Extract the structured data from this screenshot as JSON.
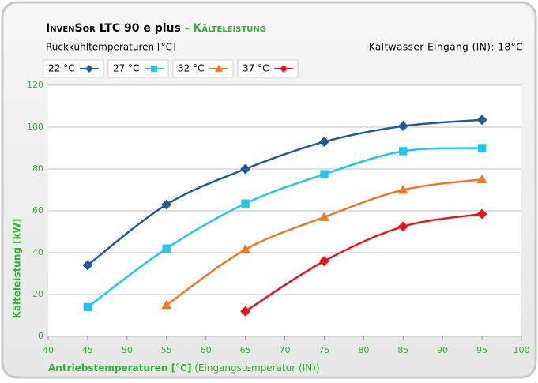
{
  "chart_data": {
    "type": "line",
    "title": [
      "InvenSor",
      " LTC 90 e plus",
      " - Kälteleistung"
    ],
    "subtitle": "Rückkühltemperaturen [°C]",
    "annotation": "Kaltwasser Eingang (IN): 18°C",
    "x_label": [
      "Antriebstemperaturen [°C]",
      " (Eingangstemperatur (IN))"
    ],
    "y_label": "Kälteleistung [kW]",
    "x": [
      45,
      55,
      65,
      75,
      85,
      95
    ],
    "series": [
      {
        "name": "22 °C",
        "color": "#1f5c99",
        "marker": "diamond",
        "values": [
          34,
          63,
          80,
          93,
          100.5,
          103.5
        ]
      },
      {
        "name": "27 °C",
        "color": "#1ec8f0",
        "marker": "square",
        "values": [
          14,
          42,
          63.5,
          77.5,
          88.5,
          90
        ]
      },
      {
        "name": "32 °C",
        "color": "#f07820",
        "marker": "triangle",
        "values": [
          null,
          15,
          41.5,
          57,
          70,
          75
        ]
      },
      {
        "name": "37 °C",
        "color": "#e8141e",
        "marker": "diamond",
        "values": [
          null,
          null,
          12,
          36,
          52.5,
          58.5
        ]
      }
    ],
    "xlim": [
      40,
      100
    ],
    "xticks": [
      40,
      45,
      50,
      55,
      60,
      65,
      70,
      75,
      80,
      85,
      90,
      95,
      100
    ],
    "ylim": [
      0,
      120
    ],
    "yticks": [
      0,
      20,
      40,
      60,
      80,
      100,
      120
    ],
    "grid": true
  }
}
